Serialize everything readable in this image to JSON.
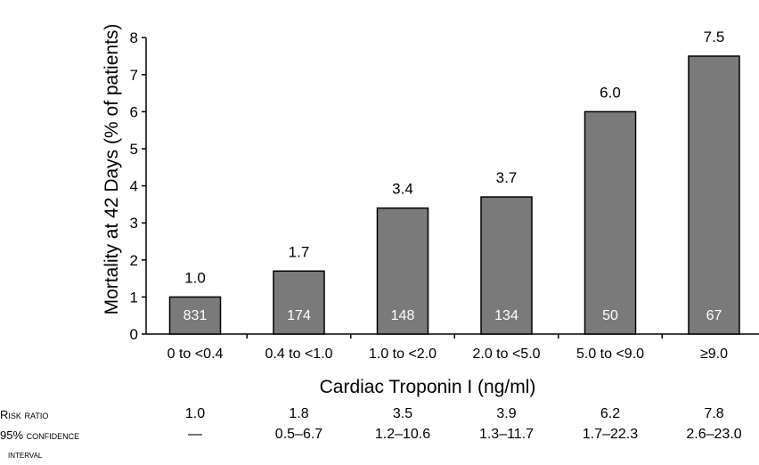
{
  "chart_data": {
    "type": "bar",
    "categories": [
      "0 to <0.4",
      "0.4 to <1.0",
      "1.0 to <2.0",
      "2.0 to <5.0",
      "5.0 to <9.0",
      "≥9.0"
    ],
    "values": [
      1.0,
      1.7,
      3.4,
      3.7,
      6.0,
      7.5
    ],
    "value_labels": [
      "1.0",
      "1.7",
      "3.4",
      "3.7",
      "6.0",
      "7.5"
    ],
    "n_patients": [
      "831",
      "174",
      "148",
      "134",
      "50",
      "67"
    ],
    "xlabel": "Cardiac Troponin I (ng/ml)",
    "ylabel": "Mortality at 42 Days (% of patients)",
    "ylim": [
      0,
      8
    ],
    "yticks": [
      "0",
      "1",
      "2",
      "3",
      "4",
      "5",
      "6",
      "7",
      "8"
    ],
    "bar_color": "#7a7a7a",
    "grid": false
  },
  "table": {
    "risk_ratio_label": "Risk ratio",
    "ci_label_line1": "95% confidence",
    "ci_label_line2": "interval",
    "risk_ratio": [
      "1.0",
      "1.8",
      "3.5",
      "3.9",
      "6.2",
      "7.8"
    ],
    "ci": [
      "—",
      "0.5–6.7",
      "1.2–10.6",
      "1.3–11.7",
      "1.7–22.3",
      "2.6–23.0"
    ]
  }
}
